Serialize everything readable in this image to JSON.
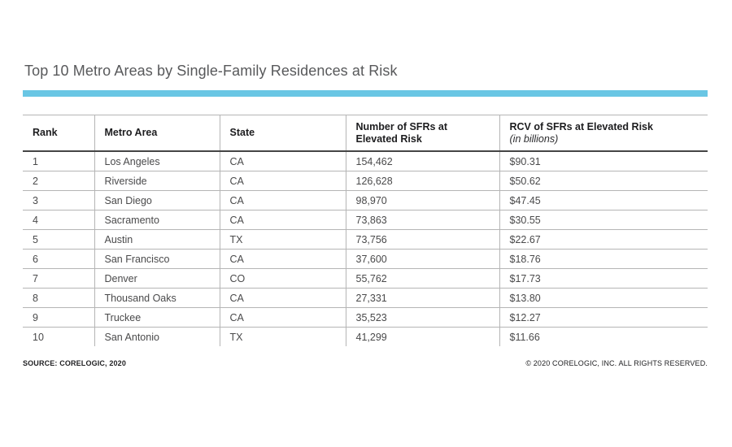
{
  "page": {
    "title": "Top 10 Metro Areas by Single-Family Residences at Risk"
  },
  "table": {
    "header": {
      "rank": "Rank",
      "metro": "Metro Area",
      "state": "State",
      "sfr_line1": "Number of SFRs at",
      "sfr_line2": "Elevated Risk",
      "rcv_label": "RCV of SFRs at Elevated Risk",
      "rcv_sublabel": "(in billions)"
    },
    "rows": [
      {
        "rank": "1",
        "metro": "Los Angeles",
        "state": "CA",
        "sfrs": "154,462",
        "rcv": "$90.31"
      },
      {
        "rank": "2",
        "metro": "Riverside",
        "state": "CA",
        "sfrs": "126,628",
        "rcv": "$50.62"
      },
      {
        "rank": "3",
        "metro": "San Diego",
        "state": "CA",
        "sfrs": "98,970",
        "rcv": "$47.45"
      },
      {
        "rank": "4",
        "metro": "Sacramento",
        "state": "CA",
        "sfrs": "73,863",
        "rcv": "$30.55"
      },
      {
        "rank": "5",
        "metro": "Austin",
        "state": "TX",
        "sfrs": "73,756",
        "rcv": "$22.67"
      },
      {
        "rank": "6",
        "metro": "San Francisco",
        "state": "CA",
        "sfrs": "37,600",
        "rcv": "$18.76"
      },
      {
        "rank": "7",
        "metro": "Denver",
        "state": "CO",
        "sfrs": "55,762",
        "rcv": "$17.73"
      },
      {
        "rank": "8",
        "metro": "Thousand Oaks",
        "state": "CA",
        "sfrs": "27,331",
        "rcv": "$13.80"
      },
      {
        "rank": "9",
        "metro": "Truckee",
        "state": "CA",
        "sfrs": "35,523",
        "rcv": "$12.27"
      },
      {
        "rank": "10",
        "metro": "San Antonio",
        "state": "TX",
        "sfrs": "41,299",
        "rcv": "$11.66"
      }
    ]
  },
  "footer": {
    "source": "SOURCE: CORELOGIC, 2020",
    "copyright": "© 2020 CORELOGIC, INC. ALL RIGHTS RESERVED."
  },
  "colors": {
    "accent_bar": "#69c6e4",
    "title_text": "#58595b",
    "header_text": "#1d1d1f",
    "cell_text": "#4a4a4b",
    "grid_line": "#b5b5b5",
    "header_rule": "#454545"
  },
  "chart_data": {
    "type": "table",
    "title": "Top 10 Metro Areas by Single-Family Residences at Risk",
    "columns": [
      "Rank",
      "Metro Area",
      "State",
      "Number of SFRs at Elevated Risk",
      "RCV of SFRs at Elevated Risk (in billions)"
    ],
    "rows": [
      [
        1,
        "Los Angeles",
        "CA",
        154462,
        90.31
      ],
      [
        2,
        "Riverside",
        "CA",
        126628,
        50.62
      ],
      [
        3,
        "San Diego",
        "CA",
        98970,
        47.45
      ],
      [
        4,
        "Sacramento",
        "CA",
        73863,
        30.55
      ],
      [
        5,
        "Austin",
        "TX",
        73756,
        22.67
      ],
      [
        6,
        "San Francisco",
        "CA",
        37600,
        18.76
      ],
      [
        7,
        "Denver",
        "CO",
        55762,
        17.73
      ],
      [
        8,
        "Thousand Oaks",
        "CA",
        27331,
        13.8
      ],
      [
        9,
        "Truckee",
        "CA",
        35523,
        12.27
      ],
      [
        10,
        "San Antonio",
        "TX",
        41299,
        11.66
      ]
    ],
    "notes": [
      "SOURCE: CORELOGIC, 2020",
      "© 2020 CORELOGIC, INC. ALL RIGHTS RESERVED."
    ]
  }
}
